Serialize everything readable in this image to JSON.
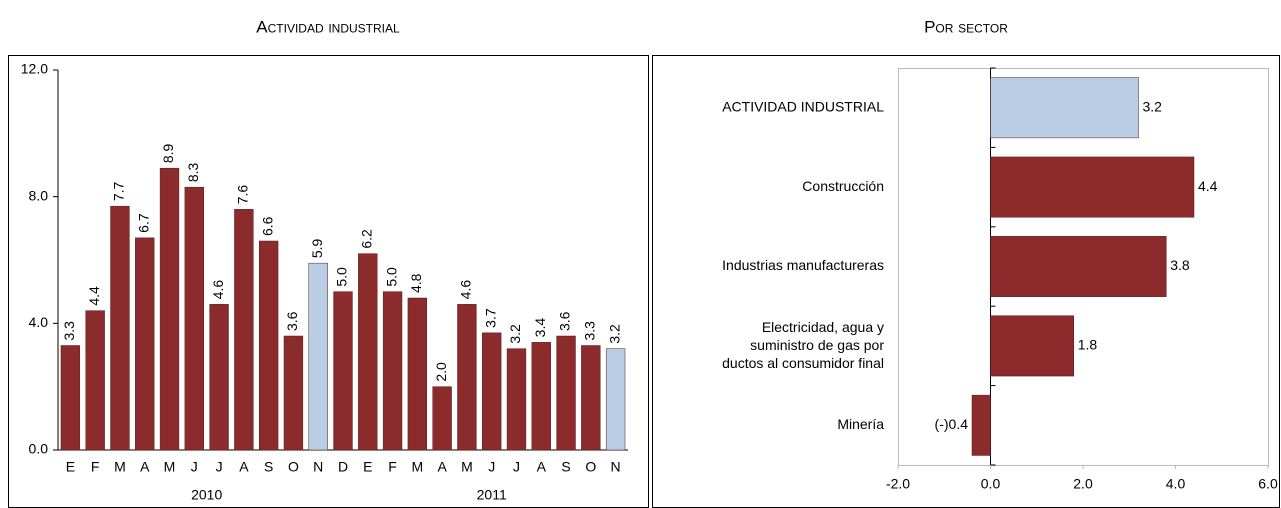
{
  "chart_data": [
    {
      "type": "bar",
      "title": "Actividad industrial",
      "categories": [
        "E",
        "F",
        "M",
        "A",
        "M",
        "J",
        "J",
        "A",
        "S",
        "O",
        "N",
        "D",
        "E",
        "F",
        "M",
        "A",
        "M",
        "J",
        "J",
        "A",
        "S",
        "O",
        "N"
      ],
      "values": [
        3.3,
        4.4,
        7.7,
        6.7,
        8.9,
        8.3,
        4.6,
        7.6,
        6.6,
        3.6,
        5.9,
        5.0,
        6.2,
        5.0,
        4.8,
        2.0,
        4.6,
        3.7,
        3.2,
        3.4,
        3.6,
        3.3,
        3.2
      ],
      "value_labels": [
        "3.3",
        "4.4",
        "7.7",
        "6.7",
        "8.9",
        "8.3",
        "4.6",
        "7.6",
        "6.6",
        "3.6",
        "5.9",
        "5.0",
        "6.2",
        "5.0",
        "4.8",
        "2.0",
        "4.6",
        "3.7",
        "3.2",
        "3.4",
        "3.6",
        "3.3",
        "3.2"
      ],
      "colors": [
        "#8b2b2b",
        "#8b2b2b",
        "#8b2b2b",
        "#8b2b2b",
        "#8b2b2b",
        "#8b2b2b",
        "#8b2b2b",
        "#8b2b2b",
        "#8b2b2b",
        "#8b2b2b",
        "#b9cde5",
        "#8b2b2b",
        "#8b2b2b",
        "#8b2b2b",
        "#8b2b2b",
        "#8b2b2b",
        "#8b2b2b",
        "#8b2b2b",
        "#8b2b2b",
        "#8b2b2b",
        "#8b2b2b",
        "#8b2b2b",
        "#b9cde5"
      ],
      "groups": [
        {
          "label": "2010",
          "span": 12
        },
        {
          "label": "2011",
          "span": 11
        }
      ],
      "ylim": [
        0,
        12
      ],
      "yticks": [
        {
          "value": 0,
          "label": "0.0"
        },
        {
          "value": 4,
          "label": "4.0"
        },
        {
          "value": 8,
          "label": "8.0"
        },
        {
          "value": 12,
          "label": "12.0"
        }
      ]
    },
    {
      "type": "hbar",
      "title": "Por sector",
      "categories": [
        "ACTIVIDAD INDUSTRIAL",
        "Construcción",
        "Industrias manufactureras",
        "Electricidad, agua y suministro de gas por ductos al consumidor final",
        "Minería"
      ],
      "values": [
        3.2,
        4.4,
        3.8,
        1.8,
        -0.4
      ],
      "value_labels": [
        "3.2",
        "4.4",
        "3.8",
        "1.8",
        "(-)0.4"
      ],
      "colors": [
        "#b9cde5",
        "#8b2b2b",
        "#8b2b2b",
        "#8b2b2b",
        "#8b2b2b"
      ],
      "xlim": [
        -2,
        6
      ],
      "xticks": [
        {
          "value": -2,
          "label": "-2.0"
        },
        {
          "value": 0,
          "label": "0.0"
        },
        {
          "value": 2,
          "label": "2.0"
        },
        {
          "value": 4,
          "label": "4.0"
        },
        {
          "value": 6,
          "label": "6.0"
        }
      ]
    }
  ]
}
